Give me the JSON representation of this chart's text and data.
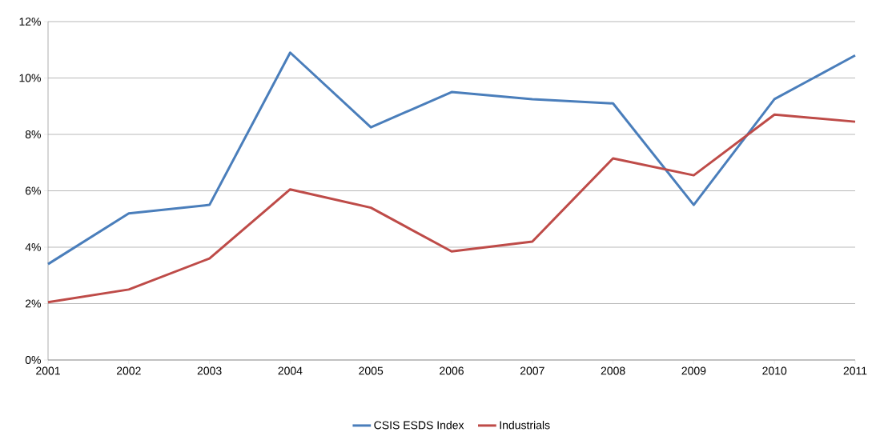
{
  "chart_data": {
    "type": "line",
    "x": [
      2001,
      2002,
      2003,
      2004,
      2005,
      2006,
      2007,
      2008,
      2009,
      2010,
      2011
    ],
    "series": [
      {
        "name": "CSIS ESDS Index",
        "color": "#4a7ebb",
        "values": [
          3.4,
          5.2,
          5.5,
          10.9,
          8.25,
          9.5,
          9.25,
          9.1,
          5.5,
          9.25,
          10.8
        ]
      },
      {
        "name": "Industrials",
        "color": "#be4b48",
        "values": [
          2.05,
          2.5,
          3.6,
          6.05,
          5.4,
          3.85,
          4.2,
          7.15,
          6.55,
          8.7,
          8.45
        ]
      }
    ],
    "xlim": [
      2001,
      2011
    ],
    "xticks": [
      2001,
      2002,
      2003,
      2004,
      2005,
      2006,
      2007,
      2008,
      2009,
      2010,
      2011
    ],
    "ylim": [
      0,
      12
    ],
    "yticks": [
      {
        "value": 0,
        "label": "0%"
      },
      {
        "value": 2,
        "label": "2%"
      },
      {
        "value": 4,
        "label": "4%"
      },
      {
        "value": 6,
        "label": "6%"
      },
      {
        "value": 8,
        "label": "8%"
      },
      {
        "value": 10,
        "label": "10%"
      },
      {
        "value": 12,
        "label": "12%"
      }
    ],
    "grid": "y",
    "legend": "bottom",
    "marker": "none",
    "line_style": "solid"
  }
}
